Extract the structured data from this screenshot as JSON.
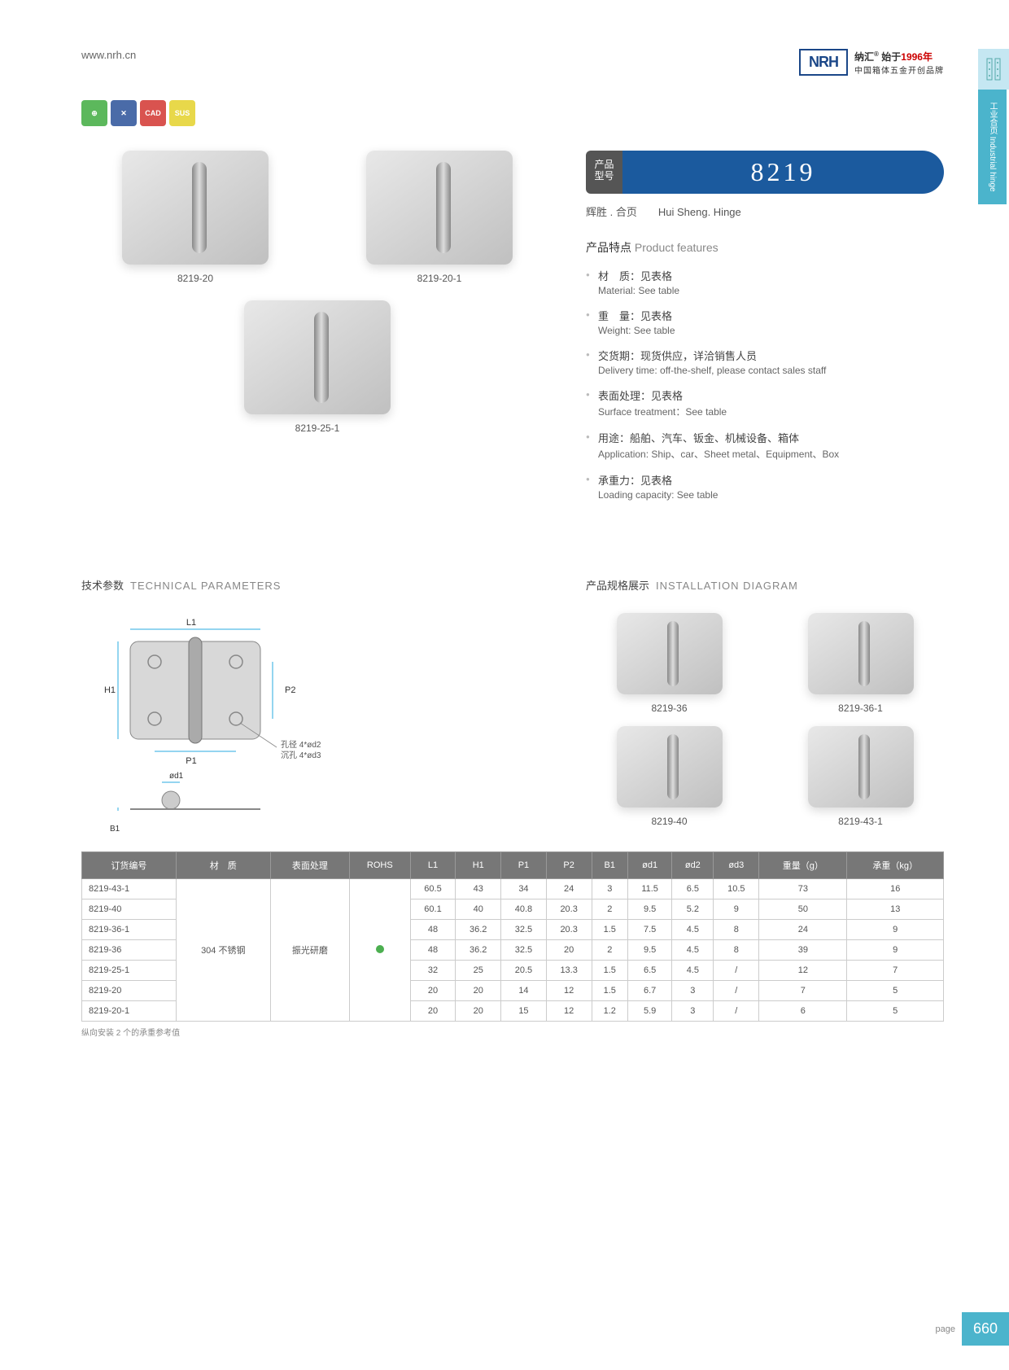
{
  "header": {
    "website": "www.nrh.cn",
    "logo": "NRH",
    "brand_cn": "纳汇",
    "since": "始于",
    "year": "1996年",
    "brand_sub": "中国箱体五金开创品牌"
  },
  "side_tab": {
    "label": "工业合页  Industrial hinge"
  },
  "badges": [
    "⊕",
    "✕",
    "CAD",
    "SUS"
  ],
  "products_top": [
    {
      "label": "8219-20"
    },
    {
      "label": "8219-20-1"
    }
  ],
  "products_single": {
    "label": "8219-25-1"
  },
  "model": {
    "label_cn": "产品型号",
    "number": "8219",
    "subtitle_cn": "辉胜 . 合页",
    "subtitle_en": "Hui Sheng. Hinge"
  },
  "features": {
    "title_cn": "产品特点",
    "title_en": "Product features",
    "items": [
      {
        "cn": "材　质：见表格",
        "en": "Material: See table"
      },
      {
        "cn": "重　量：见表格",
        "en": "Weight: See table"
      },
      {
        "cn": "交货期：现货供应，详洽销售人员",
        "en": "Delivery time: off-the-shelf, please contact sales staff"
      },
      {
        "cn": "表面处理：见表格",
        "en": "Surface treatment：See table"
      },
      {
        "cn": "用途：船舶、汽车、钣金、机械设备、箱体",
        "en": "Application: Ship、car、Sheet metal、Equipment、Box"
      },
      {
        "cn": "承重力：见表格",
        "en": "Loading capacity: See table"
      }
    ]
  },
  "tech": {
    "title_cn": "技术参数",
    "title_en": "TECHNICAL PARAMETERS",
    "diagram": {
      "L1": "L1",
      "H1": "H1",
      "P1": "P1",
      "P2": "P2",
      "B1": "B1",
      "od1": "ød1",
      "note1": "孔径 4*ød2",
      "note2": "沉孔 4*ød3"
    }
  },
  "install": {
    "title_cn": "产品规格展示",
    "title_en": "INSTALLATION DIAGRAM",
    "items": [
      "8219-36",
      "8219-36-1",
      "8219-40",
      "8219-43-1"
    ]
  },
  "table": {
    "headers": [
      "订货编号",
      "材　质",
      "表面处理",
      "ROHS",
      "L1",
      "H1",
      "P1",
      "P2",
      "B1",
      "ød1",
      "ød2",
      "ød3",
      "重量（g）",
      "承重（kg）"
    ],
    "material": "304 不锈钢",
    "surface": "振光研磨",
    "rows": [
      [
        "8219-43-1",
        "60.5",
        "43",
        "34",
        "24",
        "3",
        "11.5",
        "6.5",
        "10.5",
        "73",
        "16"
      ],
      [
        "8219-40",
        "60.1",
        "40",
        "40.8",
        "20.3",
        "2",
        "9.5",
        "5.2",
        "9",
        "50",
        "13"
      ],
      [
        "8219-36-1",
        "48",
        "36.2",
        "32.5",
        "20.3",
        "1.5",
        "7.5",
        "4.5",
        "8",
        "24",
        "9"
      ],
      [
        "8219-36",
        "48",
        "36.2",
        "32.5",
        "20",
        "2",
        "9.5",
        "4.5",
        "8",
        "39",
        "9"
      ],
      [
        "8219-25-1",
        "32",
        "25",
        "20.5",
        "13.3",
        "1.5",
        "6.5",
        "4.5",
        "/",
        "12",
        "7"
      ],
      [
        "8219-20",
        "20",
        "20",
        "14",
        "12",
        "1.5",
        "6.7",
        "3",
        "/",
        "7",
        "5"
      ],
      [
        "8219-20-1",
        "20",
        "20",
        "15",
        "12",
        "1.2",
        "5.9",
        "3",
        "/",
        "6",
        "5"
      ]
    ],
    "note": "纵向安装 2 个的承重参考值"
  },
  "footer": {
    "page_label": "page",
    "page_num": "660"
  }
}
